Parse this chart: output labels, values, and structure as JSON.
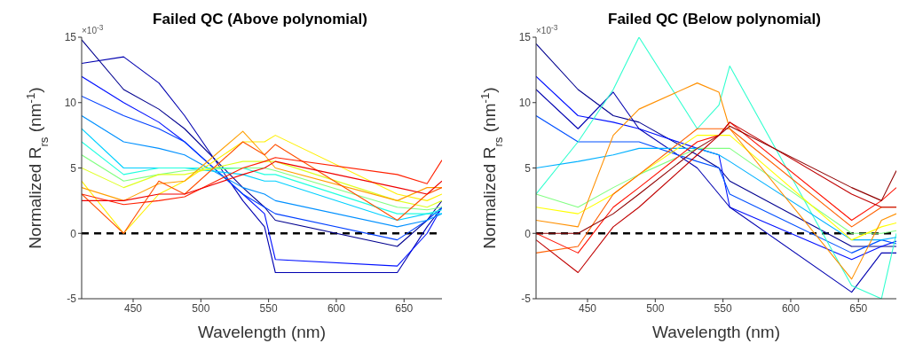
{
  "chart_data": [
    {
      "type": "line",
      "title": "Failed QC (Above polynomial)",
      "xlabel": "Wavelength (nm)",
      "ylabel": "Normalized R$_{rs}$ (nm$^{-1}$)",
      "annotations": [
        "×10$^{-3}$"
      ],
      "x": [
        412,
        443,
        469,
        488,
        531,
        547,
        555,
        645,
        667,
        678
      ],
      "xlim": [
        412,
        678
      ],
      "xticks": [
        450,
        500,
        550,
        600,
        650
      ],
      "ylim": [
        -5,
        15
      ],
      "yticks": [
        -5,
        0,
        5,
        10,
        15
      ],
      "ref_lines": [
        {
          "axis": "y",
          "value": 0,
          "color": "#000000",
          "line_style": "dashed"
        }
      ],
      "series": [
        {
          "color": "#00008f",
          "values": [
            14.8,
            11,
            9.5,
            8,
            3.5,
            2,
            1,
            -1,
            1,
            2.5
          ]
        },
        {
          "color": "#0000b0",
          "values": [
            13,
            13.5,
            11.5,
            9,
            2.5,
            0.5,
            -3,
            -3,
            0.5,
            2
          ]
        },
        {
          "color": "#0010ff",
          "values": [
            12,
            10,
            8.5,
            7,
            3,
            1.5,
            -2,
            -2.5,
            0,
            2
          ]
        },
        {
          "color": "#0040ff",
          "values": [
            10.5,
            9,
            8,
            7,
            3,
            2,
            1.5,
            -0.5,
            1,
            2
          ]
        },
        {
          "color": "#0090ff",
          "values": [
            9,
            7,
            6.5,
            6,
            3.5,
            3,
            2.5,
            0.5,
            1,
            1.5
          ]
        },
        {
          "color": "#00d0ff",
          "values": [
            8,
            5,
            5,
            5,
            4.5,
            4,
            4,
            1,
            1.5,
            1.5
          ]
        },
        {
          "color": "#20ffdf",
          "values": [
            7,
            4.5,
            5,
            5,
            5,
            4.5,
            4.5,
            1.5,
            1.5,
            1.8
          ]
        },
        {
          "color": "#80ff80",
          "values": [
            6,
            4,
            4.5,
            4.8,
            5,
            5,
            4.8,
            2,
            1.8,
            2
          ]
        },
        {
          "color": "#dfff20",
          "values": [
            5,
            3.5,
            4.5,
            4.5,
            5.5,
            5.5,
            5.5,
            2.5,
            2,
            2.5
          ]
        },
        {
          "color": "#ffef00",
          "values": [
            4,
            0,
            3,
            4,
            7,
            7,
            7.5,
            3,
            2.5,
            3
          ]
        },
        {
          "color": "#ff9f00",
          "values": [
            3.5,
            2.5,
            3.8,
            4,
            7.8,
            6,
            5,
            2.5,
            3.5,
            3.5
          ]
        },
        {
          "color": "#ff5000",
          "values": [
            3,
            0,
            4,
            3,
            7,
            6,
            6.8,
            1,
            3,
            3.5
          ]
        },
        {
          "color": "#ff2000",
          "values": [
            3,
            2.2,
            2.5,
            2.8,
            5,
            5.5,
            5.8,
            4.5,
            3.8,
            5.6
          ]
        },
        {
          "color": "#ef0000",
          "values": [
            2.5,
            2.5,
            3,
            3,
            4.5,
            5,
            5.5,
            3.5,
            3,
            4
          ]
        }
      ]
    },
    {
      "type": "line",
      "title": "Failed QC (Below polynomial)",
      "xlabel": "Wavelength (nm)",
      "ylabel": "Normalized R$_{rs}$ (nm$^{-1}$)",
      "annotations": [
        "×10$^{-3}$"
      ],
      "x": [
        412,
        443,
        469,
        488,
        531,
        547,
        555,
        645,
        667,
        678
      ],
      "xlim": [
        412,
        678
      ],
      "xticks": [
        450,
        500,
        550,
        600,
        650
      ],
      "ylim": [
        -5,
        15
      ],
      "yticks": [
        -5,
        0,
        5,
        10,
        15
      ],
      "ref_lines": [
        {
          "axis": "y",
          "value": 0,
          "color": "#000000",
          "line_style": "dashed"
        }
      ],
      "series": [
        {
          "color": "#00008f",
          "values": [
            14.5,
            11,
            9,
            8.5,
            6,
            5,
            4,
            -1,
            -1,
            -1
          ]
        },
        {
          "color": "#0010ff",
          "values": [
            12,
            9,
            8.5,
            8,
            6.5,
            6,
            2,
            -2,
            -1,
            -0.6
          ]
        },
        {
          "color": "#0000b0",
          "values": [
            11,
            8,
            10.8,
            8,
            5,
            3,
            2,
            -4.5,
            -1.5,
            -1.5
          ]
        },
        {
          "color": "#0050ff",
          "values": [
            9,
            7,
            7,
            7,
            5.5,
            5,
            3,
            -1.5,
            -0.5,
            -0.8
          ]
        },
        {
          "color": "#30ffcf",
          "values": [
            3,
            7,
            11,
            15,
            8,
            9.8,
            12.8,
            -4,
            -5,
            0
          ]
        },
        {
          "color": "#00b0ff",
          "values": [
            5,
            5.5,
            6,
            6.5,
            6.5,
            6,
            5.5,
            -0.5,
            -0.5,
            -0.3
          ]
        },
        {
          "color": "#80ff80",
          "values": [
            3,
            2,
            3.5,
            4.5,
            6.5,
            6.5,
            6.5,
            0,
            0,
            0.2
          ]
        },
        {
          "color": "#ffff00",
          "values": [
            2,
            1.5,
            3,
            4.5,
            7.5,
            7.5,
            7.5,
            -0.5,
            0.5,
            0.8
          ]
        },
        {
          "color": "#ff9000",
          "values": [
            1,
            0.5,
            7.5,
            9.5,
            11.5,
            10.8,
            8,
            -3.5,
            1,
            1.5
          ]
        },
        {
          "color": "#ff6000",
          "values": [
            -1.5,
            -1,
            3,
            4.5,
            8,
            8,
            8,
            0.5,
            2,
            2
          ]
        },
        {
          "color": "#ff1000",
          "values": [
            0,
            -1.5,
            2,
            3.5,
            7,
            7.5,
            8.5,
            1,
            2.5,
            3.5
          ]
        },
        {
          "color": "#c00000",
          "values": [
            -0.5,
            -3,
            0.5,
            2,
            6,
            7.5,
            8.5,
            3,
            2,
            2
          ]
        },
        {
          "color": "#900000",
          "values": [
            0,
            0,
            1.5,
            3,
            6.5,
            7.5,
            8.2,
            3.5,
            2.5,
            4.8
          ]
        }
      ]
    }
  ]
}
